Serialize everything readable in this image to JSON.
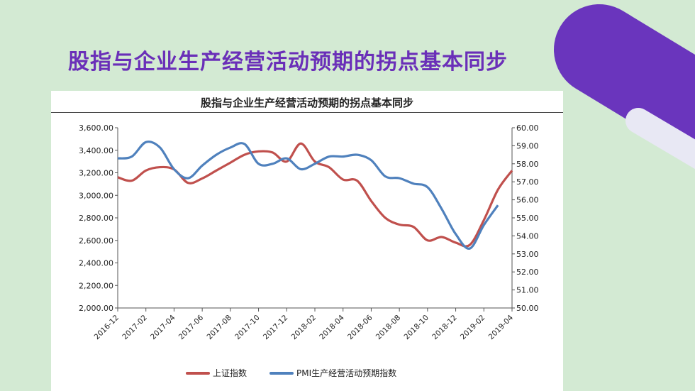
{
  "slide": {
    "title": "股指与企业生产经营活动预期的拐点基本同步"
  },
  "colors": {
    "background": "#d3ead3",
    "title": "#6a2fb8",
    "series_1": "#c0504d",
    "series_2": "#4f81bd"
  },
  "chart_data": {
    "type": "line",
    "title": "股指与企业生产经营活动预期的拐点基本同步",
    "x_ticks": [
      "2016-12",
      "2017-02",
      "2017-04",
      "2017-06",
      "2017-08",
      "2017-10",
      "2017-12",
      "2018-02",
      "2018-04",
      "2018-06",
      "2018-08",
      "2018-10",
      "2018-12",
      "2019-02",
      "2019-04"
    ],
    "x_range": [
      0,
      28
    ],
    "y_left": {
      "min": 2000,
      "max": 3600,
      "step": 200,
      "ticks": [
        "2,000.00",
        "2,200.00",
        "2,400.00",
        "2,600.00",
        "2,800.00",
        "3,000.00",
        "3,200.00",
        "3,400.00",
        "3,600.00"
      ]
    },
    "y_right": {
      "min": 50,
      "max": 60,
      "step": 1,
      "ticks": [
        "50.00",
        "51.00",
        "52.00",
        "53.00",
        "54.00",
        "55.00",
        "56.00",
        "57.00",
        "58.00",
        "59.00",
        "60.00"
      ]
    },
    "legend_position": "bottom",
    "series": [
      {
        "name": "上证指数",
        "axis": "left",
        "x": [
          0,
          1,
          2,
          3,
          4,
          5,
          6,
          7,
          8,
          9,
          10,
          11,
          12,
          13,
          14,
          15,
          16,
          17,
          18,
          19,
          20,
          21,
          22,
          23,
          24,
          25,
          26,
          27,
          28
        ],
        "values": [
          3160,
          3130,
          3220,
          3250,
          3230,
          3110,
          3150,
          3220,
          3290,
          3360,
          3390,
          3380,
          3300,
          3460,
          3300,
          3250,
          3140,
          3130,
          2950,
          2800,
          2740,
          2720,
          2600,
          2630,
          2580,
          2560,
          2780,
          3050,
          3220
        ]
      },
      {
        "name": "PMI生产经营活动预期指数",
        "axis": "right",
        "x": [
          0,
          1,
          2,
          3,
          4,
          5,
          6,
          7,
          8,
          9,
          10,
          11,
          12,
          13,
          14,
          15,
          16,
          17,
          18,
          19,
          20,
          21,
          22,
          23,
          24,
          25,
          26,
          27
        ],
        "values": [
          58.3,
          58.4,
          59.2,
          58.9,
          57.7,
          57.2,
          57.9,
          58.5,
          58.9,
          59.1,
          58.0,
          58.0,
          58.3,
          57.7,
          58.0,
          58.4,
          58.4,
          58.5,
          58.2,
          57.3,
          57.2,
          56.9,
          56.7,
          55.5,
          54.1,
          53.3,
          54.6,
          55.7
        ]
      }
    ]
  }
}
